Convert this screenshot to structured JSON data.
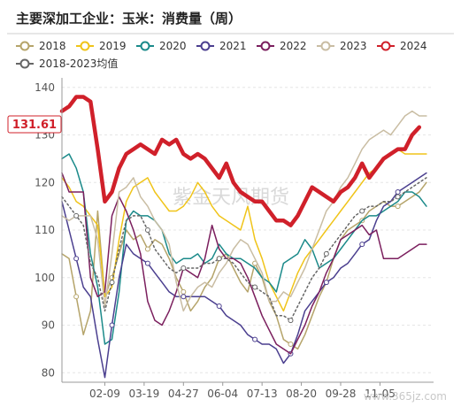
{
  "chart_data": {
    "type": "line",
    "title": "主要深加工企业：玉米：消费量（周）",
    "ylim": [
      78,
      142
    ],
    "yticks": [
      80,
      90,
      100,
      110,
      120,
      130,
      140
    ],
    "x_range": [
      0,
      52
    ],
    "x_tick_labels": [
      "02-09",
      "03-19",
      "04-27",
      "06-04",
      "07-13",
      "08-20",
      "09-28",
      "11-05"
    ],
    "x_tick_weeks": [
      6,
      11.5,
      17,
      22.5,
      28,
      33.5,
      39,
      44.5
    ],
    "grid": true,
    "legend_position": "top",
    "latest_value_label": "131.61",
    "watermark": "紫金天风期货",
    "watermark_site": "www.365jz.com",
    "series": [
      {
        "name": "2018",
        "color": "#b5a46a",
        "width": 1.5,
        "dash": "",
        "marker": "circle",
        "values": [
          105,
          104,
          96,
          88,
          93,
          114,
          96,
          100,
          105,
          110,
          108,
          109,
          106,
          108,
          107,
          104,
          100,
          97,
          93,
          95,
          98,
          100,
          104,
          105,
          102,
          99,
          97,
          103,
          100,
          95,
          92,
          87,
          86,
          85,
          88,
          92,
          96,
          99,
          104,
          108,
          110,
          111,
          112,
          114,
          115,
          116,
          115,
          115,
          116,
          117,
          118,
          120
        ]
      },
      {
        "name": "2019",
        "color": "#f0c419",
        "width": 1.5,
        "dash": "",
        "marker": "none",
        "values": [
          121,
          119,
          116,
          115,
          113,
          111,
          96,
          98,
          108,
          116,
          119,
          120,
          121,
          118,
          116,
          114,
          114,
          115,
          117,
          120,
          118,
          115,
          113,
          112,
          111,
          110,
          115,
          108,
          104,
          99,
          96,
          93,
          97,
          101,
          104,
          106,
          108,
          110,
          112,
          114,
          116,
          118,
          120,
          122,
          123,
          125,
          126,
          127,
          126,
          126,
          126,
          126
        ]
      },
      {
        "name": "2020",
        "color": "#1b8a8a",
        "width": 1.5,
        "dash": "",
        "marker": "none",
        "values": [
          125,
          126,
          123,
          118,
          105,
          98,
          86,
          87,
          97,
          112,
          114,
          113,
          113,
          112,
          110,
          105,
          103,
          104,
          104,
          105,
          103,
          104,
          107,
          105,
          104,
          104,
          103,
          102,
          100,
          99,
          97,
          103,
          104,
          105,
          108,
          106,
          102,
          103,
          104,
          106,
          108,
          110,
          112,
          113,
          113,
          114,
          115,
          116,
          118,
          118,
          117,
          115
        ]
      },
      {
        "name": "2021",
        "color": "#4b3f8f",
        "width": 1.5,
        "dash": "",
        "marker": "circle",
        "values": [
          116,
          110,
          104,
          98,
          96,
          87,
          79,
          90,
          100,
          107,
          105,
          104,
          103,
          101,
          99,
          97,
          96,
          96,
          96,
          96,
          96,
          95,
          94,
          92,
          91,
          90,
          88,
          87,
          86,
          86,
          85,
          82,
          84,
          88,
          93,
          95,
          97,
          99,
          100,
          102,
          103,
          105,
          107,
          108,
          112,
          115,
          116,
          118,
          119,
          120,
          121,
          122
        ]
      },
      {
        "name": "2022",
        "color": "#7b1f5e",
        "width": 1.5,
        "dash": "",
        "marker": "none",
        "values": [
          122,
          118,
          118,
          118,
          100,
          96,
          97,
          113,
          117,
          114,
          110,
          105,
          95,
          91,
          90,
          93,
          97,
          102,
          101,
          100,
          104,
          111,
          106,
          104,
          104,
          103,
          100,
          96,
          92,
          89,
          86,
          85,
          84,
          87,
          90,
          94,
          97,
          101,
          104,
          108,
          109,
          110,
          111,
          109,
          110,
          104,
          104,
          104,
          105,
          106,
          107,
          107
        ]
      },
      {
        "name": "2023",
        "color": "#c9bda3",
        "width": 1.5,
        "dash": "",
        "marker": "none",
        "values": [
          113,
          112,
          113,
          113,
          113,
          108,
          94,
          105,
          118,
          119,
          121,
          117,
          115,
          112,
          110,
          107,
          99,
          93,
          96,
          98,
          99,
          98,
          101,
          103,
          106,
          108,
          107,
          104,
          101,
          95,
          95,
          97,
          96,
          99,
          102,
          106,
          110,
          114,
          116,
          119,
          121,
          124,
          127,
          129,
          130,
          131,
          130,
          132,
          134,
          135,
          134,
          134
        ]
      },
      {
        "name": "2024",
        "color": "#d0202a",
        "width": 4.5,
        "dash": "",
        "marker": "none",
        "values": [
          135,
          136,
          138,
          138,
          137,
          127,
          116,
          118,
          123,
          126,
          127,
          128,
          127,
          126,
          129,
          128,
          129,
          126,
          125,
          126,
          125,
          123,
          121,
          124,
          120,
          118,
          117,
          116,
          116,
          114,
          112,
          112,
          111,
          113,
          116,
          119,
          118,
          117,
          116,
          118,
          119,
          121,
          124,
          121,
          123,
          125,
          126,
          127,
          127,
          130,
          131.61,
          null
        ]
      },
      {
        "name": "2018-2023均值",
        "color": "#666666",
        "width": 1.5,
        "dash": "2,3",
        "marker": "circle",
        "values": [
          117,
          115,
          113,
          111,
          103,
          100,
          93,
          99,
          106,
          112,
          113,
          113,
          110,
          106,
          104,
          102,
          101,
          102,
          102,
          102,
          103,
          103,
          104,
          104,
          103,
          101,
          99,
          98,
          97,
          96,
          92,
          92,
          91,
          94,
          97,
          100,
          102,
          105,
          107,
          109,
          111,
          113,
          114,
          115,
          115,
          116,
          116,
          117,
          118,
          119,
          120,
          121
        ]
      }
    ]
  }
}
